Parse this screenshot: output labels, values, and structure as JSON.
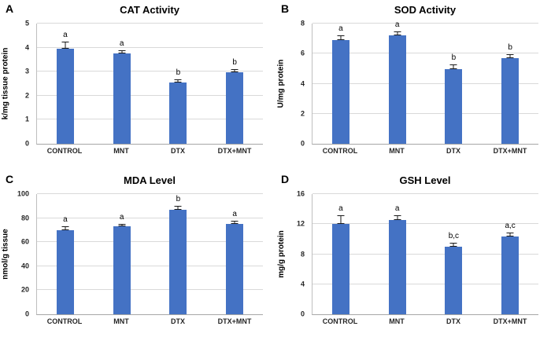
{
  "figure": {
    "background": "#ffffff",
    "bar_color": "#4472C4",
    "gridline_color": "#d9d9d9",
    "error_bar_color": "#1a1a1a"
  },
  "chart_data": [
    {
      "type": "bar",
      "panel": "A",
      "title": "CAT Activity",
      "ylabel": "k/mg tissue protein",
      "xlabel": "",
      "categories": [
        "CONTROL",
        "MNT",
        "DTX",
        "DTX+MNT"
      ],
      "values": [
        3.95,
        3.75,
        2.55,
        2.97
      ],
      "errors": [
        0.3,
        0.15,
        0.12,
        0.15
      ],
      "sig_labels": [
        "a",
        "a",
        "b",
        "b"
      ],
      "ylim": [
        0,
        5
      ],
      "yticks": [
        0,
        1,
        2,
        3,
        4,
        5
      ],
      "grid": true,
      "legend": "none"
    },
    {
      "type": "bar",
      "panel": "B",
      "title": "SOD Activity",
      "ylabel": "U/mg protein",
      "xlabel": "",
      "categories": [
        "CONTROL",
        "MNT",
        "DTX",
        "DTX+MNT"
      ],
      "values": [
        6.9,
        7.2,
        4.95,
        5.7
      ],
      "errors": [
        0.3,
        0.3,
        0.35,
        0.25
      ],
      "sig_labels": [
        "a",
        "a",
        "b",
        "b"
      ],
      "ylim": [
        0,
        8
      ],
      "yticks": [
        0,
        2,
        4,
        6,
        8
      ],
      "grid": true,
      "legend": "none"
    },
    {
      "type": "bar",
      "panel": "C",
      "title": "MDA Level",
      "ylabel": "nmol/g tissue",
      "xlabel": "",
      "categories": [
        "CONTROL",
        "MNT",
        "DTX",
        "DTX+MNT"
      ],
      "values": [
        70,
        73,
        87,
        75
      ],
      "errors": [
        3,
        2.5,
        3,
        3
      ],
      "sig_labels": [
        "a",
        "a",
        "b",
        "a"
      ],
      "ylim": [
        0,
        100
      ],
      "yticks": [
        0,
        20,
        40,
        60,
        80,
        100
      ],
      "grid": true,
      "legend": "none"
    },
    {
      "type": "bar",
      "panel": "D",
      "title": "GSH Level",
      "ylabel": "mg/g protein",
      "xlabel": "",
      "categories": [
        "CONTROL",
        "MNT",
        "DTX",
        "DTX+MNT"
      ],
      "values": [
        12,
        12.5,
        9,
        10.4
      ],
      "errors": [
        1.2,
        0.7,
        0.5,
        0.5
      ],
      "sig_labels": [
        "a",
        "a",
        "b,c",
        "a,c"
      ],
      "ylim": [
        0,
        16
      ],
      "yticks": [
        0,
        4,
        8,
        12,
        16
      ],
      "grid": true,
      "legend": "none"
    }
  ]
}
